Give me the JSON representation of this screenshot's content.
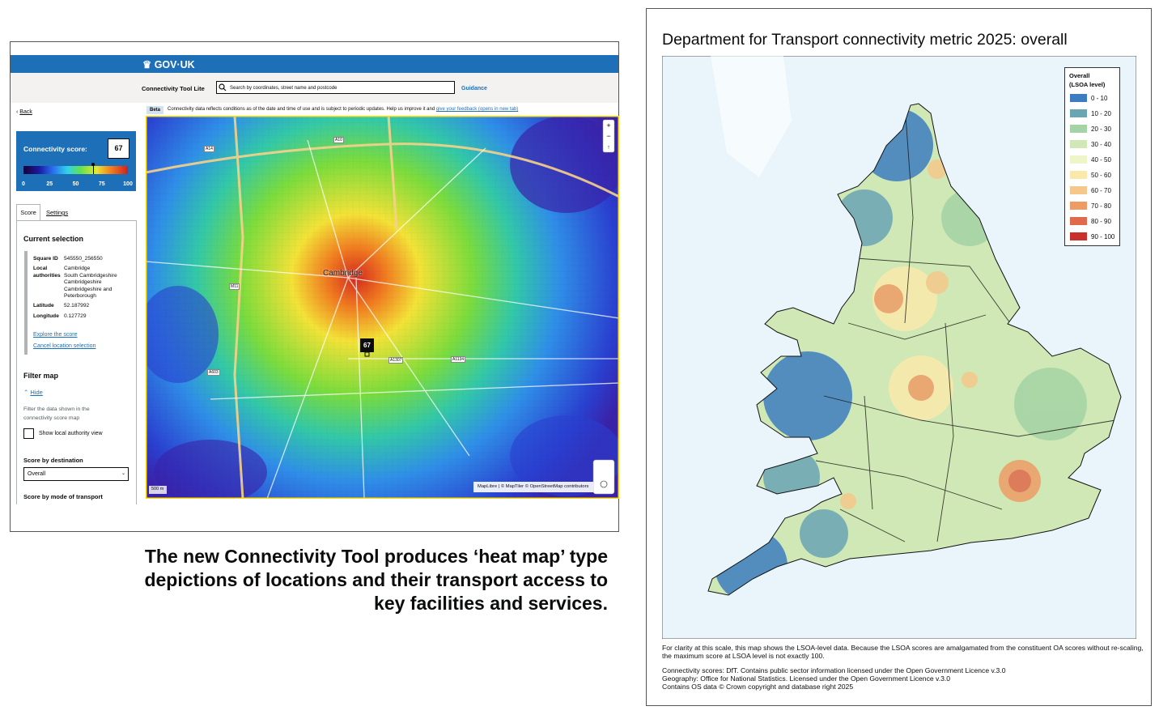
{
  "left_panel": {
    "brand": "GOV·UK",
    "tool_name": "Connectivity Tool Lite",
    "search_placeholder": "Search by coordinates, street name and postcode",
    "guidance": "Guidance",
    "back": "Back",
    "beta_tag": "Beta",
    "beta_text": "Connectivity data reflects conditions as of the date and time of use and is subject to periodic updates. Help us improve it and",
    "beta_link": "give your feedback (opens in new tab)",
    "score_label": "Connectivity score:",
    "score": 67,
    "scale_ticks": [
      0,
      25,
      50,
      75,
      100
    ],
    "scale_lim": [
      0,
      100
    ],
    "tabs": [
      "Score",
      "Settings"
    ],
    "current_selection": "Current selection",
    "fields": [
      {
        "label": "Square ID",
        "value": [
          "545550_256550"
        ]
      },
      {
        "label": "Local authorities",
        "value": [
          "Cambridge",
          "South Cambridgeshire",
          "Cambridgeshire",
          "Cambridgeshire and Peterborough"
        ]
      },
      {
        "label": "Latitude",
        "value": [
          "52.187992"
        ]
      },
      {
        "label": "Longitude",
        "value": [
          "0.127729"
        ]
      }
    ],
    "links": [
      "Explore the score",
      "Cancel location selection"
    ],
    "filter_map": "Filter map",
    "hide": "Hide",
    "filter_text": "Filter the data shown in the connectivity score map",
    "checkbox": "Show local authority view",
    "score_by_destination": "Score by destination",
    "select_value": "Overall",
    "score_by_mode": "Score by mode of transport",
    "map_city": "Cambridge",
    "road_labels": [
      "A14",
      "A10",
      "M11",
      "A1307",
      "A603",
      "A1134"
    ],
    "attribution": "MapLibre | © MapTiler © OpenStreetMap contributors",
    "scale_bar": "500 m"
  },
  "caption": [
    "The new Connectivity Tool produces ‘heat map’ type",
    "depictions of locations and their transport access to",
    "key facilities and services."
  ],
  "right_panel": {
    "title": "Department for Transport connectivity metric 2025: overall",
    "legend": {
      "title": [
        "Overall",
        "(LSOA level)"
      ],
      "items": [
        {
          "label": "0 - 10",
          "color": "#3d7dbf"
        },
        {
          "label": "10 - 20",
          "color": "#6aa5b4"
        },
        {
          "label": "20 - 30",
          "color": "#a4d3a5"
        },
        {
          "label": "30 - 40",
          "color": "#cfe8b5"
        },
        {
          "label": "40 - 50",
          "color": "#eef5c8"
        },
        {
          "label": "50 - 60",
          "color": "#fbe9ab"
        },
        {
          "label": "60 - 70",
          "color": "#f5c78a"
        },
        {
          "label": "70 - 80",
          "color": "#ee9c66"
        },
        {
          "label": "80 - 90",
          "color": "#df6a4c"
        },
        {
          "label": "90 - 100",
          "color": "#c9302c"
        }
      ]
    },
    "footnotes": [
      "For clarity at this scale, this map shows the LSOA-level data. Because the LSOA scores are amalgamated from the constituent OA scores without re-scaling,",
      "the maximum score at LSOA level is not exactly 100.",
      "Connectivity scores: DfT. Contains public sector information licensed under the Open Government Licence v.3.0",
      "Geography: Office for National Statistics. Licensed under the Open Government Licence v.3.0",
      "Contains OS data © Crown copyright and database right 2025"
    ]
  }
}
